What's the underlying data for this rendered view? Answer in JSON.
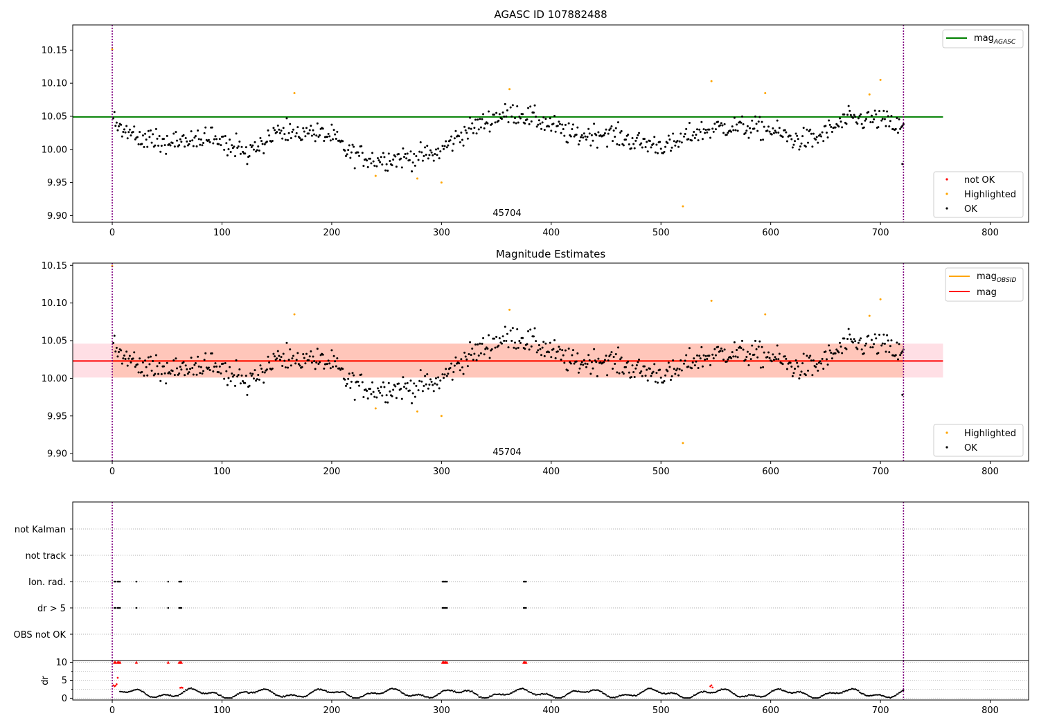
{
  "chart_data": [
    {
      "type": "scatter",
      "title": "AGASC ID 107882488",
      "xlim": [
        -36,
        835
      ],
      "ylim": [
        9.89,
        10.188
      ],
      "xticks": [
        0,
        100,
        200,
        300,
        400,
        500,
        600,
        700,
        800
      ],
      "yticks": [
        9.9,
        9.95,
        10.0,
        10.05,
        10.1,
        10.15
      ],
      "obsid_label": "45704",
      "obsid_label_x": 360,
      "obsid_boundaries": [
        0,
        721
      ],
      "reference_line": {
        "name": "mag_AGASC",
        "name_base": "mag",
        "name_sub": "AGASC",
        "y": 10.049,
        "x": [
          -36,
          757
        ],
        "color": "#008000"
      },
      "legend_lines": [
        {
          "base": "mag",
          "sub": "AGASC",
          "color": "#008000"
        }
      ],
      "legend_markers": [
        {
          "label": "not OK",
          "color": "#ff0000"
        },
        {
          "label": "Highlighted",
          "color": "#ffa500"
        },
        {
          "label": "OK",
          "color": "#000000"
        }
      ],
      "highlighted_points": [
        [
          0,
          10.151
        ],
        [
          166,
          10.085
        ],
        [
          240,
          9.96
        ],
        [
          278,
          9.956
        ],
        [
          300,
          9.95
        ],
        [
          362,
          10.091
        ],
        [
          520,
          9.914
        ],
        [
          546,
          10.103
        ],
        [
          595,
          10.085
        ],
        [
          690,
          10.083
        ],
        [
          700,
          10.105
        ]
      ]
    },
    {
      "type": "scatter",
      "title": "Magnitude Estimates",
      "xlim": [
        -36,
        835
      ],
      "ylim": [
        9.89,
        10.153
      ],
      "xticks": [
        0,
        100,
        200,
        300,
        400,
        500,
        600,
        700,
        800
      ],
      "yticks": [
        9.9,
        9.95,
        10.0,
        10.05,
        10.1,
        10.15
      ],
      "obsid_label": "45704",
      "obsid_label_x": 360,
      "obsid_boundaries": [
        0,
        721
      ],
      "reference_line": {
        "name": "mag",
        "y": 10.023,
        "x": [
          -36,
          757
        ],
        "color": "#ff0000"
      },
      "obsid_line": {
        "base": "mag",
        "sub": "OBSID",
        "y": 10.023,
        "x": [
          0,
          721
        ],
        "color": "#ffa500"
      },
      "band": {
        "y": [
          10.001,
          10.046
        ],
        "x": [
          -36,
          757
        ],
        "color": "#ffc0cb"
      },
      "obsid_band": {
        "y": [
          10.001,
          10.046
        ],
        "x": [
          0,
          721
        ],
        "color": "#ffa07a"
      },
      "legend_lines": [
        {
          "base": "mag",
          "sub": "OBSID",
          "color": "#ffa500"
        },
        {
          "base": "mag",
          "sub": "",
          "color": "#ff0000"
        }
      ],
      "legend_markers": [
        {
          "label": "Highlighted",
          "color": "#ffa500"
        },
        {
          "label": "OK",
          "color": "#000000"
        }
      ],
      "highlighted_points": [
        [
          0,
          10.149
        ],
        [
          166,
          10.085
        ],
        [
          240,
          9.96
        ],
        [
          278,
          9.956
        ],
        [
          300,
          9.95
        ],
        [
          362,
          10.091
        ],
        [
          520,
          9.914
        ],
        [
          546,
          10.103
        ],
        [
          595,
          10.085
        ],
        [
          690,
          10.083
        ],
        [
          700,
          10.105
        ]
      ]
    },
    {
      "type": "scatter",
      "title": "",
      "xlim": [
        -36,
        835
      ],
      "categories": [
        "not Kalman",
        "not track",
        "Ion. rad.",
        "dr > 5",
        "OBS not OK"
      ],
      "obsid_boundaries": [
        0,
        721
      ],
      "flag_points": {
        "Ion. rad.": [
          2,
          3,
          5,
          6,
          7,
          22,
          51,
          61,
          62,
          63,
          301,
          302,
          303,
          304,
          305,
          375,
          376,
          377
        ],
        "dr > 5": [
          2,
          3,
          5,
          6,
          7,
          22,
          51,
          61,
          62,
          63,
          301,
          302,
          303,
          304,
          305,
          375,
          376,
          377
        ]
      },
      "dr_panel": {
        "ylabel": "dr",
        "ylim": [
          -0.5,
          10.5
        ],
        "yticks": [
          0,
          5,
          10
        ],
        "clip_value": 10,
        "clipped_x": [
          2,
          3,
          5,
          6,
          7,
          22,
          51,
          61,
          62,
          63,
          301,
          302,
          303,
          304,
          305,
          375,
          376,
          377
        ],
        "red_points": [
          [
            1,
            3.6
          ],
          [
            2,
            3.3
          ],
          [
            3,
            3.5
          ],
          [
            4,
            3.9
          ],
          [
            5,
            5.7
          ],
          [
            62,
            2.9
          ],
          [
            63,
            3.0
          ],
          [
            64,
            2.9
          ],
          [
            545,
            3.3
          ],
          [
            546,
            3.6
          ],
          [
            547,
            3.0
          ]
        ]
      }
    }
  ]
}
